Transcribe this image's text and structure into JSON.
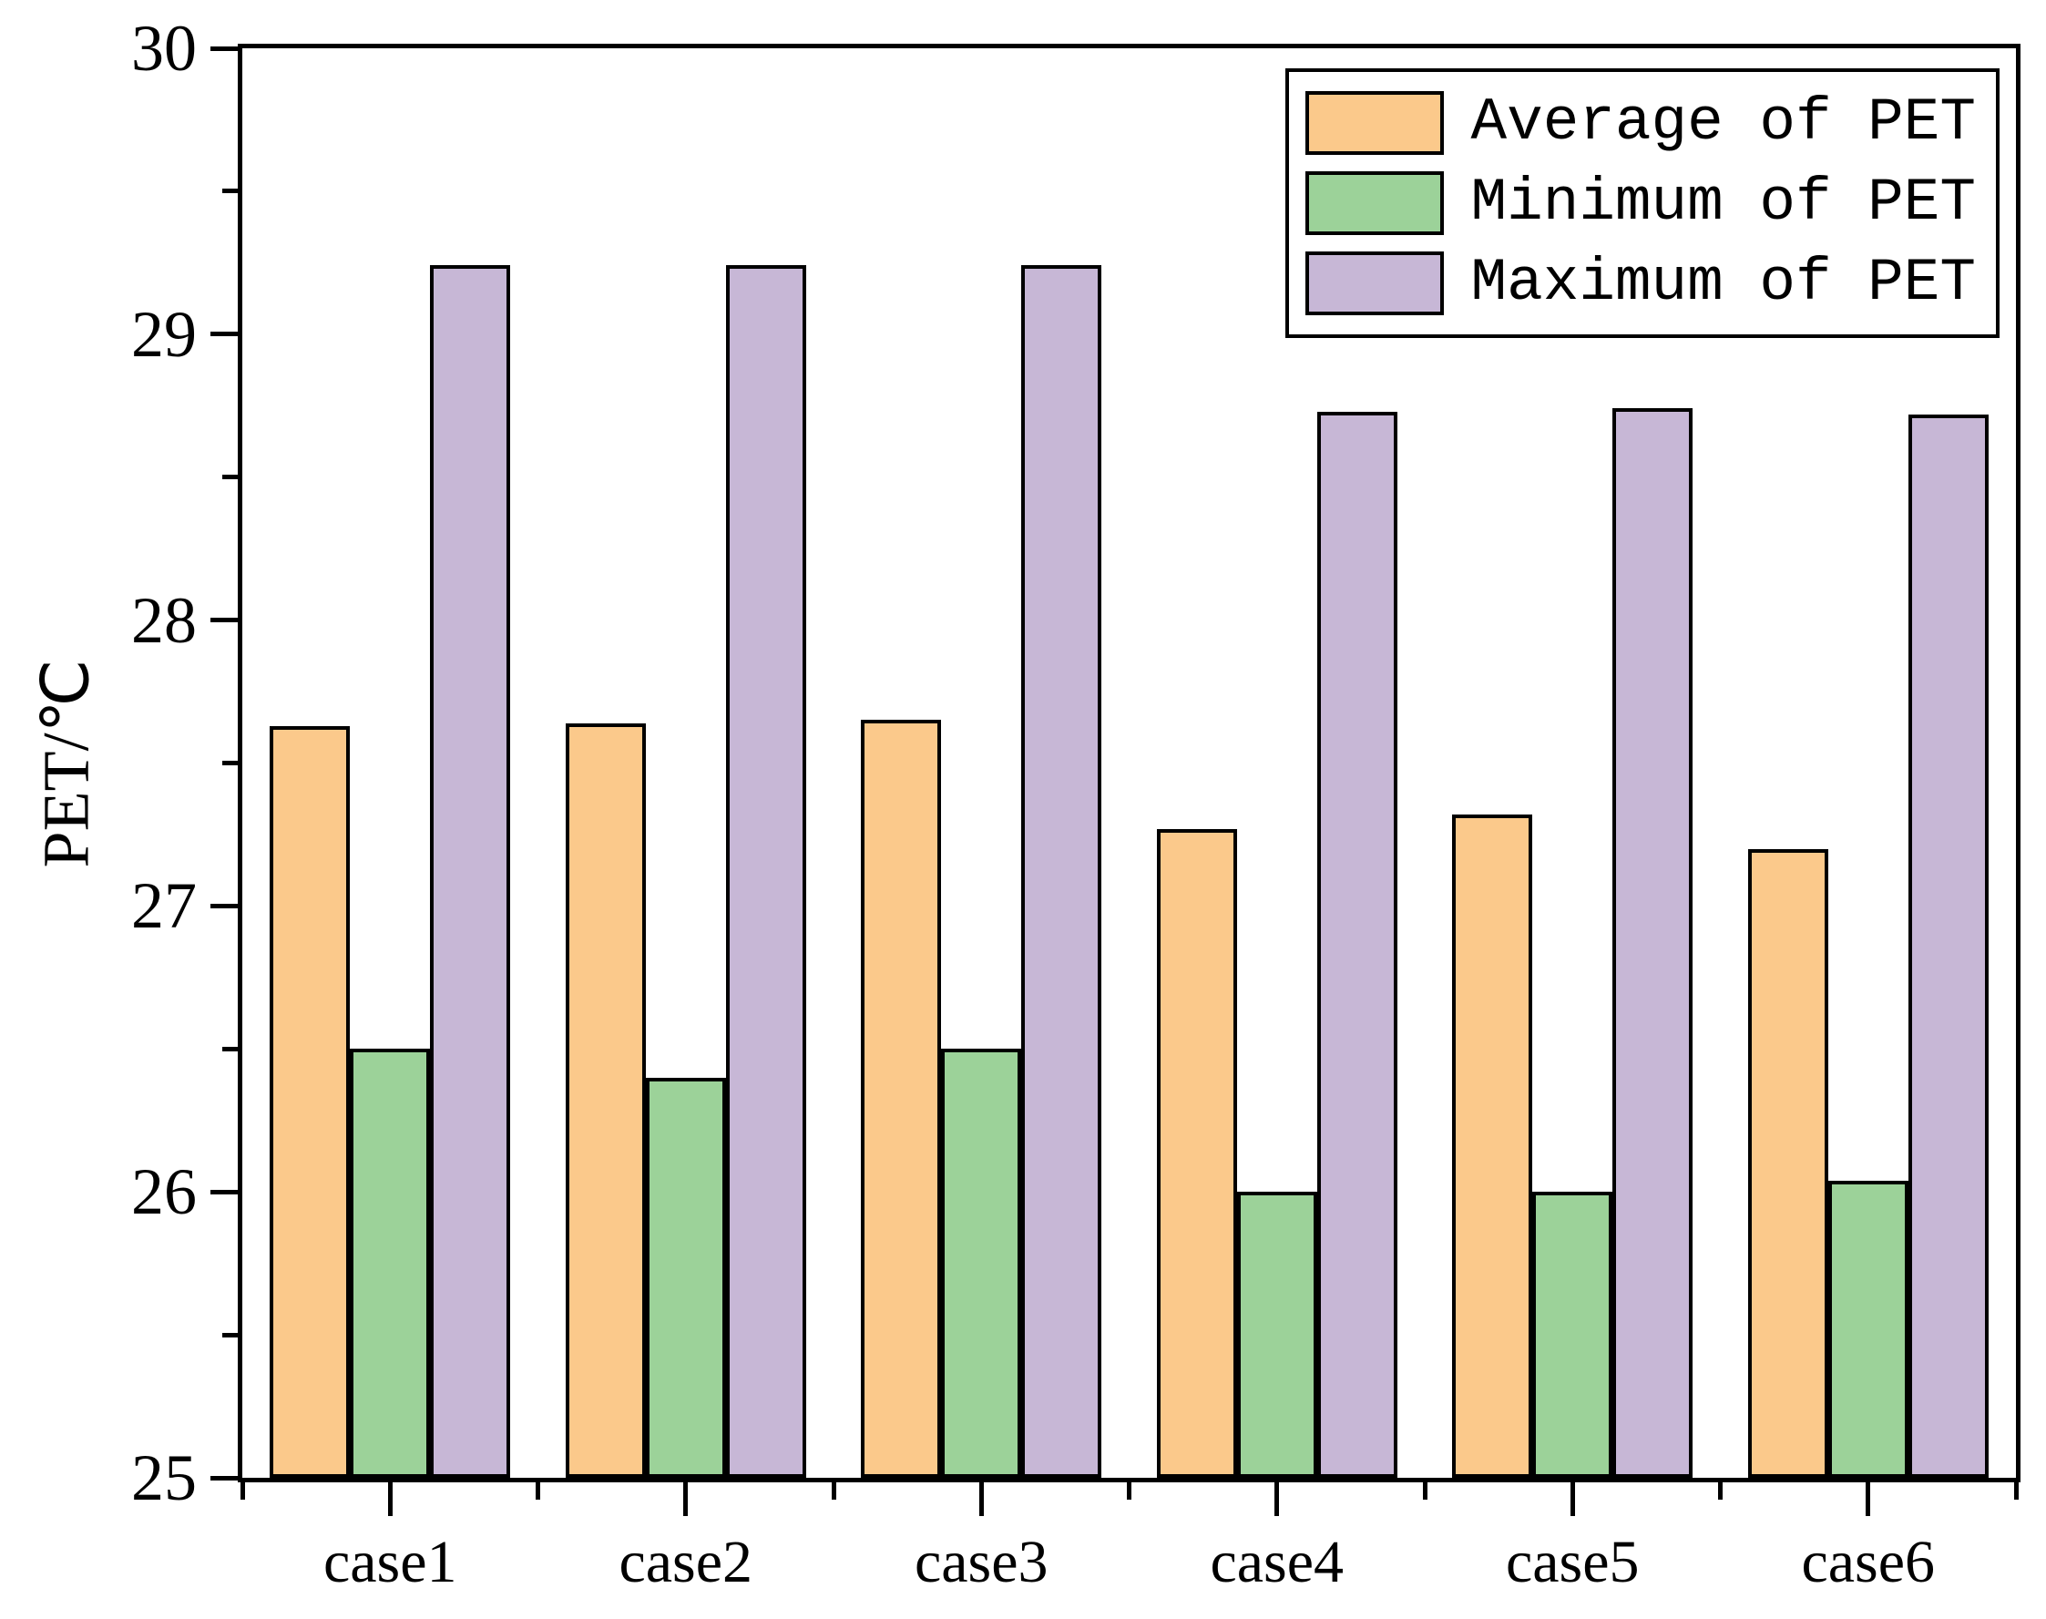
{
  "chart_data": {
    "type": "bar",
    "title": "",
    "xlabel": "",
    "ylabel": "PET/℃",
    "categories": [
      "case1",
      "case2",
      "case3",
      "case4",
      "case5",
      "case6"
    ],
    "series": [
      {
        "name": "Average of PET",
        "color": "#FBC98B",
        "values": [
          27.63,
          27.64,
          27.65,
          27.27,
          27.32,
          27.2
        ]
      },
      {
        "name": "Minimum of PET",
        "color": "#9CD299",
        "values": [
          26.5,
          26.4,
          26.5,
          26.0,
          26.0,
          26.04
        ]
      },
      {
        "name": "Maximum of PET",
        "color": "#C7B7D6",
        "values": [
          29.24,
          29.24,
          29.24,
          28.73,
          28.74,
          28.72
        ]
      }
    ],
    "ylim": [
      25,
      30
    ],
    "y_major_ticks": [
      25,
      26,
      27,
      28,
      29,
      30
    ],
    "y_minor_step": 0.5,
    "grid": false,
    "legend_position": "top-right",
    "axis_color": "#000000",
    "background_color": "#ffffff"
  }
}
